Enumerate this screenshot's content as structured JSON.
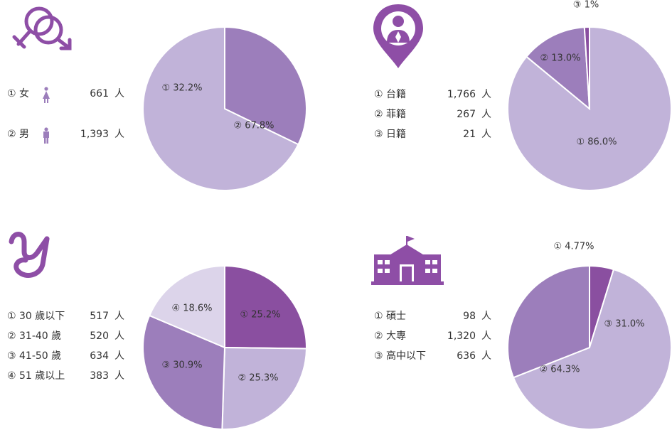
{
  "colors": {
    "dark": "#8a4fa0",
    "medium": "#9c7ebb",
    "light": "#c1b3d9",
    "lightest": "#dcd4ea",
    "icon": "#8e4ea6"
  },
  "icons": [
    "gender-symbol-icon",
    "person-location-pin-icon",
    "age-script-y-icon",
    "school-building-icon"
  ],
  "legend": {
    "unit": "人",
    "gender": [
      {
        "label": "① 女",
        "value": "661"
      },
      {
        "label": "② 男",
        "value": "1,393"
      }
    ],
    "nationality": [
      {
        "label": "① 台籍",
        "value": "1,766"
      },
      {
        "label": "② 菲籍",
        "value": "267"
      },
      {
        "label": "③ 日籍",
        "value": "21"
      }
    ],
    "age": [
      {
        "label": "① 30 歲以下",
        "value": "517"
      },
      {
        "label": "② 31-40 歲",
        "value": "520"
      },
      {
        "label": "③ 41-50 歲",
        "value": "634"
      },
      {
        "label": "④ 51 歲以上",
        "value": "383"
      }
    ],
    "education": [
      {
        "label": "① 碩士",
        "value": "98"
      },
      {
        "label": "② 大專",
        "value": "1,320"
      },
      {
        "label": "③ 高中以下",
        "value": "636"
      }
    ]
  },
  "chart_data": [
    {
      "type": "pie",
      "categories": [
        "①",
        "②"
      ],
      "values": [
        32.2,
        67.8
      ],
      "labels": [
        "① 32.2%",
        "② 67.8%"
      ]
    },
    {
      "type": "pie",
      "categories": [
        "①",
        "②",
        "③"
      ],
      "values": [
        86.0,
        13.0,
        1.0
      ],
      "labels": [
        "① 86.0%",
        "② 13.0%",
        "③ 1%"
      ]
    },
    {
      "type": "pie",
      "categories": [
        "①",
        "②",
        "③",
        "④"
      ],
      "values": [
        25.2,
        25.3,
        30.9,
        18.6
      ],
      "labels": [
        "① 25.2%",
        "② 25.3%",
        "③ 30.9%",
        "④ 18.6%"
      ]
    },
    {
      "type": "pie",
      "categories": [
        "①",
        "②",
        "③"
      ],
      "values": [
        4.77,
        64.3,
        31.0
      ],
      "labels": [
        "① 4.77%",
        "② 64.3%",
        "③ 31.0%"
      ]
    }
  ]
}
